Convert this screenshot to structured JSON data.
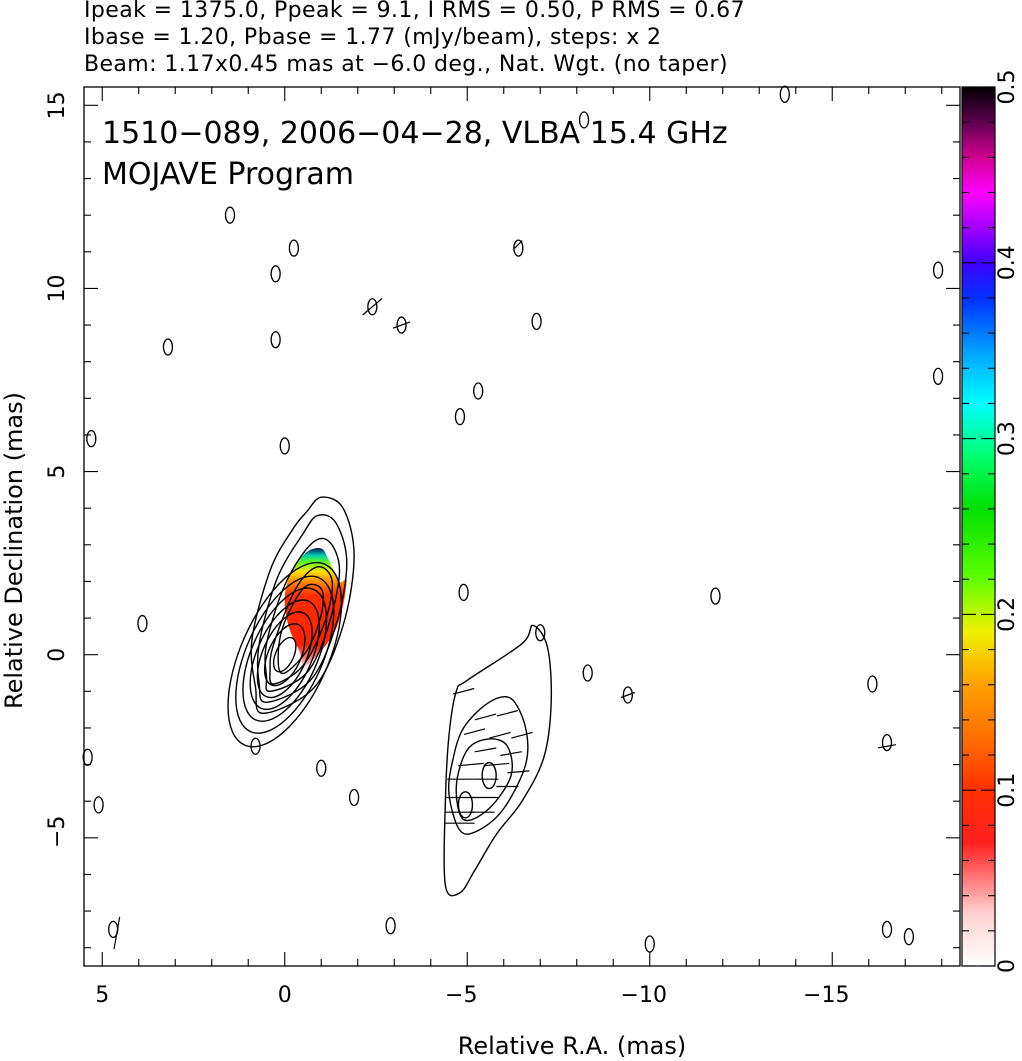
{
  "header": {
    "line1": "Ipeak = 1375.0, Ppeak = 9.1, I RMS = 0.50, P RMS = 0.67",
    "line2": "Ibase = 1.20, Pbase = 1.77 (mJy/beam), steps: x 2",
    "line3": "Beam: 1.17x0.45 mas at −6.0 deg., Nat. Wgt. (no taper)"
  },
  "chart_data": {
    "type": "heatmap",
    "title": "1510−089, 2006−04−28, VLBA 15.4 GHz",
    "subtitle": "MOJAVE Program",
    "xlabel": "Relative R.A. (mas)",
    "ylabel": "Relative Declination (mas)",
    "xlim": [
      5.5,
      -18.5
    ],
    "ylim": [
      -8.5,
      15.5
    ],
    "x_reversed": true,
    "xticks": [
      5,
      0,
      -5,
      -10,
      -15
    ],
    "xtick_labels": [
      "5",
      "0",
      "−5",
      "−10",
      "−15"
    ],
    "yticks": [
      -5,
      0,
      5,
      10,
      15
    ],
    "ytick_labels": [
      "−5",
      "0",
      "5",
      "10",
      "15"
    ],
    "colorbar": {
      "range": [
        0,
        0.5
      ],
      "ticks": [
        0,
        0.1,
        0.2,
        0.3,
        0.4,
        0.5
      ],
      "tick_labels": [
        "0",
        "0.1",
        "0.2",
        "0.3",
        "0.4",
        "0.5"
      ],
      "orientation": "vertical"
    },
    "core": {
      "ra": 0.0,
      "dec": 0.0
    },
    "core_contours_mas": [
      {
        "w": 0.25,
        "h": 0.5
      },
      {
        "w": 0.45,
        "h": 0.9
      },
      {
        "w": 0.6,
        "h": 1.25
      },
      {
        "w": 0.75,
        "h": 1.6
      },
      {
        "w": 0.9,
        "h": 1.95
      },
      {
        "w": 1.05,
        "h": 2.3
      },
      {
        "w": 1.2,
        "h": 2.7
      }
    ],
    "jet_contours": [
      [
        [
          0.6,
          -1.6
        ],
        [
          -0.8,
          -0.9
        ],
        [
          -1.6,
          0.8
        ],
        [
          -1.9,
          2.7
        ],
        [
          -1.6,
          4.0
        ],
        [
          -1.0,
          4.3
        ],
        [
          -0.6,
          3.9
        ],
        [
          -0.2,
          3.4
        ],
        [
          0.4,
          2.3
        ],
        [
          0.9,
          0.4
        ],
        [
          0.8,
          -0.9
        ]
      ],
      [
        [
          0.5,
          -1.3
        ],
        [
          -0.7,
          -0.7
        ],
        [
          -1.4,
          0.8
        ],
        [
          -1.7,
          2.5
        ],
        [
          -1.4,
          3.6
        ],
        [
          -0.9,
          3.8
        ],
        [
          -0.5,
          3.3
        ],
        [
          0.2,
          2.1
        ],
        [
          0.7,
          0.3
        ],
        [
          0.7,
          -0.8
        ]
      ],
      [
        [
          0.4,
          -1.0
        ],
        [
          -0.6,
          -0.5
        ],
        [
          -1.2,
          0.8
        ],
        [
          -1.5,
          2.3
        ],
        [
          -1.2,
          3.1
        ],
        [
          -0.7,
          3.0
        ],
        [
          0.0,
          1.9
        ],
        [
          0.5,
          0.3
        ],
        [
          0.5,
          -0.6
        ]
      ],
      [
        [
          0.3,
          -0.8
        ],
        [
          -0.5,
          -0.3
        ],
        [
          -1.1,
          0.9
        ],
        [
          -1.3,
          2.0
        ],
        [
          -0.9,
          2.4
        ],
        [
          -0.3,
          1.8
        ],
        [
          0.3,
          0.3
        ],
        [
          0.4,
          -0.4
        ]
      ],
      [
        [
          0.1,
          -0.5
        ],
        [
          -0.6,
          0.1
        ],
        [
          -1.0,
          1.1
        ],
        [
          -1.0,
          1.8
        ],
        [
          -0.5,
          1.8
        ],
        [
          0.1,
          0.6
        ]
      ]
    ],
    "polarization_region": [
      [
        -0.6,
        -0.3
      ],
      [
        -1.4,
        0.7
      ],
      [
        -1.7,
        2.0
      ],
      [
        -1.5,
        2.0
      ],
      [
        -1.2,
        2.6
      ],
      [
        -1.0,
        2.9
      ],
      [
        -0.6,
        2.8
      ],
      [
        -0.2,
        2.3
      ],
      [
        0.0,
        1.6
      ],
      [
        -0.1,
        0.8
      ],
      [
        -0.4,
        0.1
      ]
    ],
    "polarization_fraction_gradient": [
      {
        "pos": 0.0,
        "value": 0.0
      },
      {
        "pos": 0.35,
        "value": 0.1
      },
      {
        "pos": 0.55,
        "value": 0.16
      },
      {
        "pos": 0.72,
        "value": 0.22
      },
      {
        "pos": 0.86,
        "value": 0.3
      },
      {
        "pos": 1.0,
        "value": 0.45
      }
    ],
    "lower_component_contours": [
      [
        [
          -4.7,
          -1.0
        ],
        [
          -5.0,
          -0.7
        ],
        [
          -6.5,
          0.3
        ],
        [
          -6.8,
          0.8
        ],
        [
          -7.2,
          0.2
        ],
        [
          -7.3,
          -1.3
        ],
        [
          -7.1,
          -2.8
        ],
        [
          -6.5,
          -4.0
        ],
        [
          -5.8,
          -4.9
        ],
        [
          -5.2,
          -5.9
        ],
        [
          -4.8,
          -6.5
        ],
        [
          -4.4,
          -6.3
        ],
        [
          -4.4,
          -4.0
        ],
        [
          -4.5,
          -2.2
        ]
      ],
      [
        [
          -4.9,
          -2.0
        ],
        [
          -5.6,
          -1.3
        ],
        [
          -6.2,
          -1.2
        ],
        [
          -6.6,
          -2.0
        ],
        [
          -6.6,
          -3.0
        ],
        [
          -6.0,
          -4.2
        ],
        [
          -5.3,
          -4.8
        ],
        [
          -4.8,
          -4.8
        ],
        [
          -4.5,
          -3.8
        ],
        [
          -4.6,
          -2.9
        ]
      ],
      [
        [
          -5.0,
          -2.6
        ],
        [
          -5.6,
          -2.3
        ],
        [
          -6.1,
          -2.5
        ],
        [
          -6.2,
          -3.3
        ],
        [
          -5.6,
          -4.2
        ],
        [
          -4.9,
          -4.5
        ],
        [
          -4.7,
          -3.6
        ]
      ]
    ],
    "lower_component_peaks": [
      {
        "ra": -4.95,
        "dec": -4.1
      },
      {
        "ra": -5.6,
        "dec": -3.3
      }
    ],
    "noise_islands": [
      {
        "ra": 3.9,
        "dec": 0.85
      },
      {
        "ra": 5.3,
        "dec": 5.9
      },
      {
        "ra": 3.2,
        "dec": 8.4
      },
      {
        "ra": 1.5,
        "dec": 12.0
      },
      {
        "ra": -0.25,
        "dec": 11.1
      },
      {
        "ra": 0.25,
        "dec": 10.4
      },
      {
        "ra": 0.25,
        "dec": 8.6
      },
      {
        "ra": 0.0,
        "dec": 5.7
      },
      {
        "ra": -2.4,
        "dec": 9.5
      },
      {
        "ra": -3.2,
        "dec": 9.0
      },
      {
        "ra": -5.3,
        "dec": 7.2
      },
      {
        "ra": -4.8,
        "dec": 6.5
      },
      {
        "ra": -6.4,
        "dec": 11.1
      },
      {
        "ra": -6.9,
        "dec": 9.1
      },
      {
        "ra": -8.2,
        "dec": 14.6
      },
      {
        "ra": -4.9,
        "dec": 1.7
      },
      {
        "ra": -7.0,
        "dec": 0.6
      },
      {
        "ra": -8.3,
        "dec": -0.5
      },
      {
        "ra": -9.4,
        "dec": -1.1
      },
      {
        "ra": -11.8,
        "dec": 1.6
      },
      {
        "ra": -16.1,
        "dec": -0.8
      },
      {
        "ra": -16.5,
        "dec": -2.4
      },
      {
        "ra": -17.1,
        "dec": -7.7
      },
      {
        "ra": -16.5,
        "dec": -7.5
      },
      {
        "ra": -10.0,
        "dec": -7.9
      },
      {
        "ra": -2.9,
        "dec": -7.4
      },
      {
        "ra": 0.8,
        "dec": -2.5
      },
      {
        "ra": -1.0,
        "dec": -3.1
      },
      {
        "ra": -1.9,
        "dec": -3.9
      },
      {
        "ra": 5.1,
        "dec": -4.1
      },
      {
        "ra": 5.4,
        "dec": -2.8
      },
      {
        "ra": 4.7,
        "dec": -7.5
      },
      {
        "ra": -17.9,
        "dec": 10.5
      },
      {
        "ra": -17.9,
        "dec": 7.6
      },
      {
        "ra": -13.7,
        "dec": 15.3
      }
    ],
    "evpa_ticks": [
      {
        "ra": 4.6,
        "dec": -7.6,
        "len": 0.9,
        "ang": 80
      },
      {
        "ra": -2.4,
        "dec": 9.5,
        "len": 0.7,
        "ang": 40
      },
      {
        "ra": -3.2,
        "dec": 9.0,
        "len": 0.5,
        "ang": 20
      },
      {
        "ra": -16.5,
        "dec": -2.5,
        "len": 0.5,
        "ang": 10
      },
      {
        "ra": -9.4,
        "dec": -1.1,
        "len": 0.4,
        "ang": 20
      },
      {
        "ra": -6.4,
        "dec": 11.2,
        "len": 0.3,
        "ang": 45
      },
      {
        "ra": -4.9,
        "dec": -1.0,
        "len": 0.6,
        "ang": 15
      },
      {
        "ra": -5.5,
        "dec": -1.7,
        "len": 0.6,
        "ang": 15
      },
      {
        "ra": -6.1,
        "dec": -1.6,
        "len": 0.6,
        "ang": 15
      },
      {
        "ra": -5.2,
        "dec": -2.1,
        "len": 0.6,
        "ang": 15
      },
      {
        "ra": -5.9,
        "dec": -2.2,
        "len": 0.6,
        "ang": 15
      },
      {
        "ra": -6.5,
        "dec": -2.2,
        "len": 0.6,
        "ang": 15
      },
      {
        "ra": -5.5,
        "dec": -2.6,
        "len": 0.6,
        "ang": 10
      },
      {
        "ra": -6.2,
        "dec": -2.7,
        "len": 0.6,
        "ang": 10
      },
      {
        "ra": -5.1,
        "dec": -3.0,
        "len": 0.7,
        "ang": 5
      },
      {
        "ra": -5.8,
        "dec": -3.0,
        "len": 0.7,
        "ang": 5
      },
      {
        "ra": -6.4,
        "dec": -3.2,
        "len": 0.6,
        "ang": 5
      },
      {
        "ra": -4.8,
        "dec": -3.4,
        "len": 0.7,
        "ang": 0
      },
      {
        "ra": -5.5,
        "dec": -3.4,
        "len": 0.7,
        "ang": 0
      },
      {
        "ra": -6.1,
        "dec": -3.6,
        "len": 0.6,
        "ang": 0
      },
      {
        "ra": -4.8,
        "dec": -3.9,
        "len": 0.8,
        "ang": 0
      },
      {
        "ra": -5.5,
        "dec": -3.9,
        "len": 0.7,
        "ang": 0
      },
      {
        "ra": -4.8,
        "dec": -4.3,
        "len": 0.8,
        "ang": 0
      },
      {
        "ra": -5.4,
        "dec": -4.3,
        "len": 0.7,
        "ang": 0
      },
      {
        "ra": -4.8,
        "dec": -4.6,
        "len": 0.8,
        "ang": 0
      }
    ]
  }
}
